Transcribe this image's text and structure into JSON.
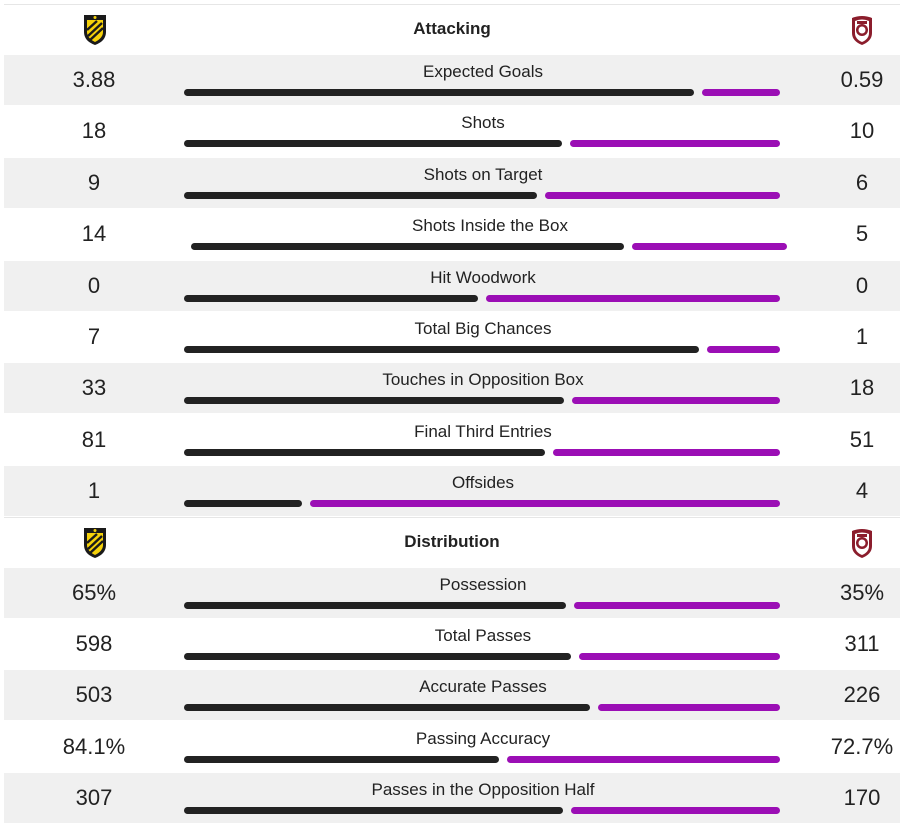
{
  "colors": {
    "home": "#222222",
    "away": "#9b0eb5"
  },
  "sections": [
    {
      "title": "Attacking",
      "home_crest": "bk-hacken-crest-icon",
      "away_crest": "cfr-cluj-crest-icon",
      "stats": [
        {
          "label": "Expected Goals",
          "home": "3.88",
          "away": "0.59",
          "home_share": 0.868,
          "offset": 0
        },
        {
          "label": "Shots",
          "home": "18",
          "away": "10",
          "home_share": 0.643,
          "offset": 0
        },
        {
          "label": "Shots on Target",
          "home": "9",
          "away": "6",
          "home_share": 0.6,
          "offset": 0
        },
        {
          "label": "Shots Inside the Box",
          "home": "14",
          "away": "5",
          "home_share": 0.737,
          "offset": 7
        },
        {
          "label": "Hit Woodwork",
          "home": "0",
          "away": "0",
          "home_share": 0.5,
          "offset": 0
        },
        {
          "label": "Total Big Chances",
          "home": "7",
          "away": "1",
          "home_share": 0.875,
          "offset": 0
        },
        {
          "label": "Touches in Opposition Box",
          "home": "33",
          "away": "18",
          "home_share": 0.647,
          "offset": 0
        },
        {
          "label": "Final Third Entries",
          "home": "81",
          "away": "51",
          "home_share": 0.614,
          "offset": 0
        },
        {
          "label": "Offsides",
          "home": "1",
          "away": "4",
          "home_share": 0.2,
          "offset": 0
        }
      ]
    },
    {
      "title": "Distribution",
      "home_crest": "bk-hacken-crest-icon",
      "away_crest": "cfr-cluj-crest-icon",
      "stats": [
        {
          "label": "Possession",
          "home": "65%",
          "away": "35%",
          "home_share": 0.65,
          "offset": 0
        },
        {
          "label": "Total Passes",
          "home": "598",
          "away": "311",
          "home_share": 0.658,
          "offset": 0
        },
        {
          "label": "Accurate Passes",
          "home": "503",
          "away": "226",
          "home_share": 0.69,
          "offset": 0
        },
        {
          "label": "Passing Accuracy",
          "home": "84.1%",
          "away": "72.7%",
          "home_share": 0.536,
          "offset": 0
        },
        {
          "label": "Passes in the Opposition Half",
          "home": "307",
          "away": "170",
          "home_share": 0.644,
          "offset": 0
        }
      ]
    }
  ]
}
